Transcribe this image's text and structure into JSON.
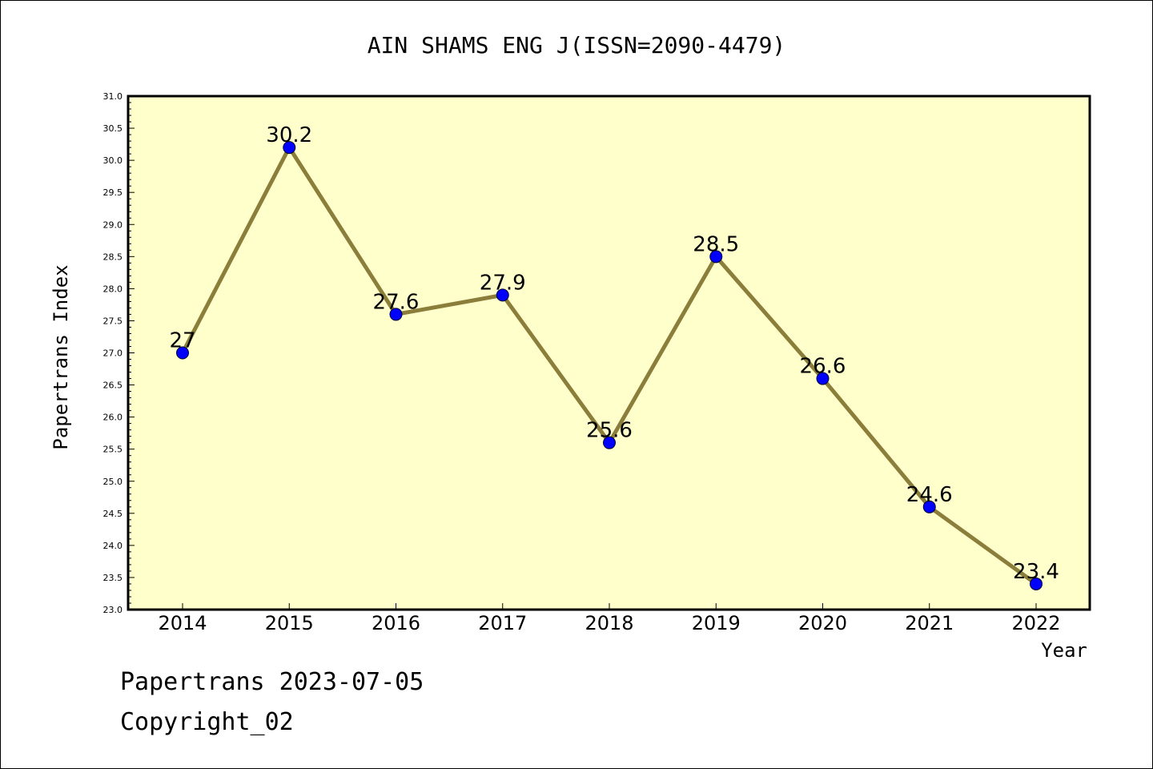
{
  "chart_data": {
    "type": "line",
    "title": "AIN SHAMS ENG J(ISSN=2090-4479)",
    "xlabel": "Year",
    "ylabel": "Papertrans Index",
    "categories": [
      "2014",
      "2015",
      "2016",
      "2017",
      "2018",
      "2019",
      "2020",
      "2021",
      "2022"
    ],
    "values": [
      27,
      30.2,
      27.6,
      27.9,
      25.6,
      28.5,
      26.6,
      24.6,
      23.4
    ],
    "data_labels": [
      "27",
      "30.2",
      "27.6",
      "27.9",
      "25.6",
      "28.5",
      "26.6",
      "24.6",
      "23.4"
    ],
    "ylim": [
      23.0,
      31.0
    ],
    "ytick_labels": [
      "23.0",
      "23.5",
      "24.0",
      "24.5",
      "25.0",
      "25.5",
      "26.0",
      "26.5",
      "27.0",
      "27.5",
      "28.0",
      "28.5",
      "29.0",
      "29.5",
      "30.0",
      "30.5",
      "31.0"
    ],
    "grid": false,
    "legend": "none",
    "colors": {
      "plot_background": "#ffffcc",
      "line": "#8b7d3a",
      "marker": "#0000ff"
    }
  },
  "footer": {
    "line1": "Papertrans 2023-07-05",
    "line2": "Copyright_02"
  }
}
